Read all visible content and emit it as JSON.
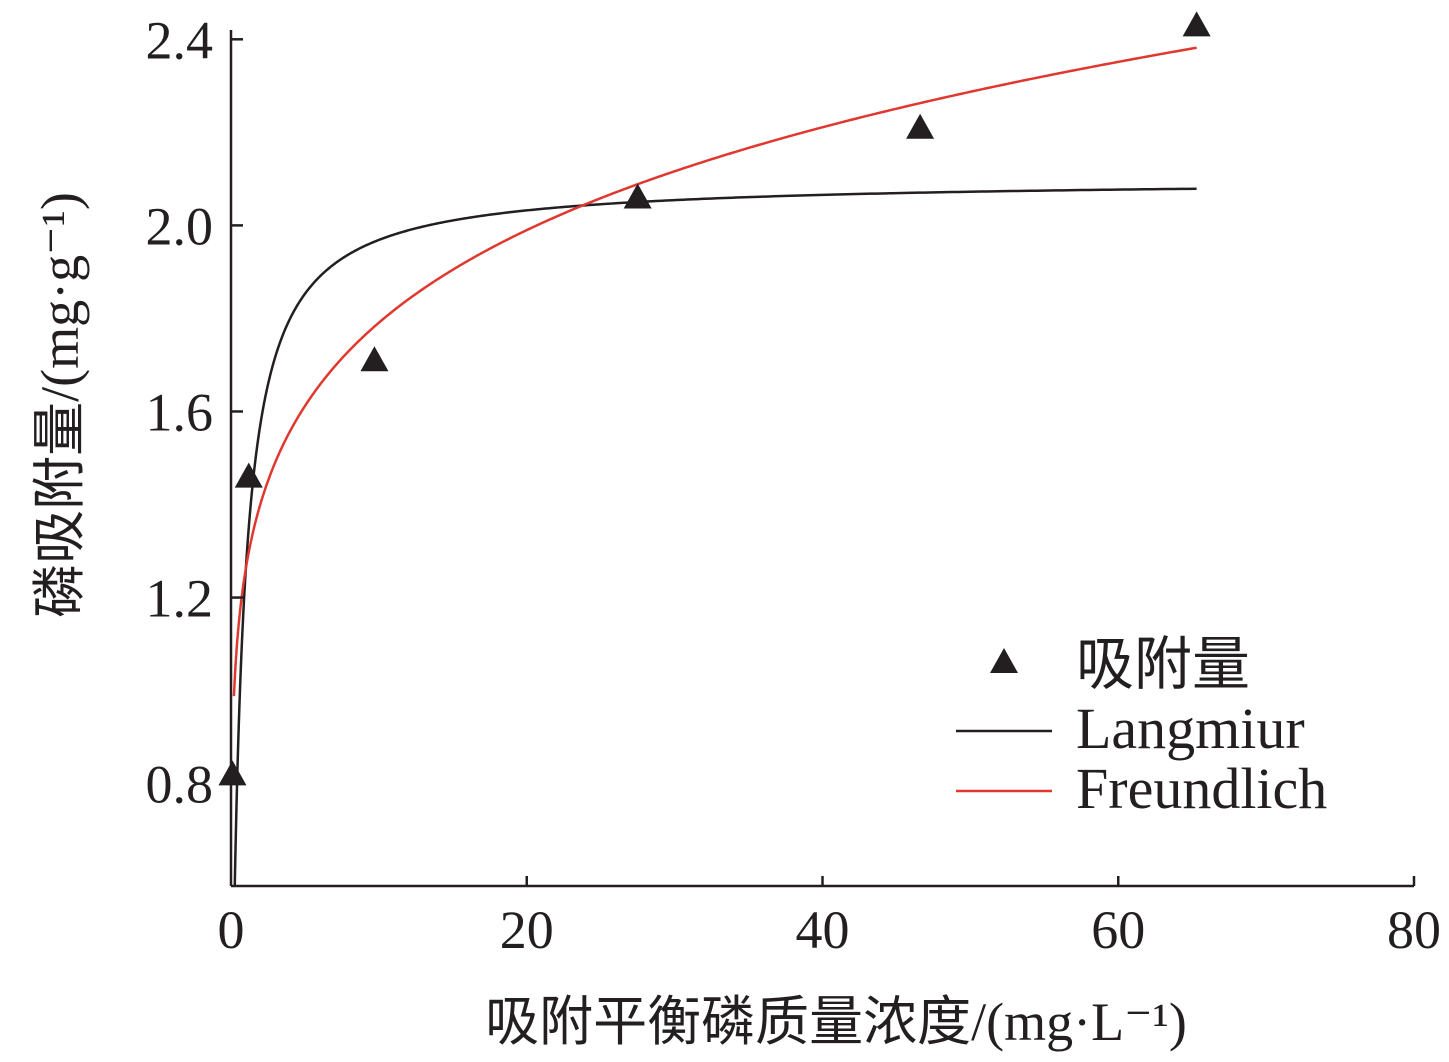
{
  "chart_data": {
    "type": "scatter",
    "xlabel": "吸附平衡磷质量浓度/(mg·L⁻¹)",
    "ylabel": "磷吸附量/(mg·g⁻¹)",
    "xlim": [
      0,
      80
    ],
    "ylim": [
      0.58,
      2.42
    ],
    "xticks": [
      "0",
      "20",
      "40",
      "60",
      "80"
    ],
    "yticks": [
      "0.8",
      "1.2",
      "1.6",
      "2.0",
      "2.4"
    ],
    "grid": false,
    "legend_position": "bottom-right",
    "series": [
      {
        "name": "吸附量",
        "kind": "markers",
        "marker": "triangle",
        "color": "#231f20",
        "points": [
          {
            "x": 0.1,
            "y": 0.82
          },
          {
            "x": 1.2,
            "y": 1.46
          },
          {
            "x": 9.7,
            "y": 1.71
          },
          {
            "x": 27.5,
            "y": 2.06
          },
          {
            "x": 46.6,
            "y": 2.21
          },
          {
            "x": 65.3,
            "y": 2.43
          }
        ]
      },
      {
        "name": "Langmiur",
        "kind": "line",
        "color": "#231f20",
        "model": "langmuir",
        "qm": 2.1,
        "KL": 1.5,
        "x_range": [
          0.005,
          65.3
        ]
      },
      {
        "name": "Freundlich",
        "kind": "line",
        "color": "#e0382f",
        "model": "freundlich",
        "KF": 1.262,
        "inv_n": 0.152,
        "x_range": [
          0.2,
          65.3
        ]
      }
    ]
  }
}
